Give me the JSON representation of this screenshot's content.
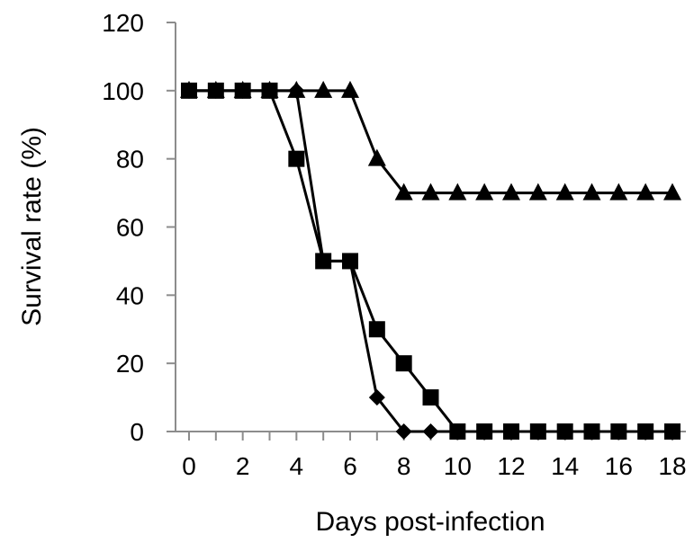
{
  "chart_data": {
    "type": "line",
    "title": "",
    "xlabel": "Days post-infection",
    "ylabel": "Survival rate (%)",
    "xlim": [
      0,
      18
    ],
    "ylim": [
      0,
      120
    ],
    "x_ticks": [
      "0",
      "2",
      "4",
      "6",
      "8",
      "10",
      "12",
      "14",
      "16",
      "18"
    ],
    "y_ticks": [
      "0",
      "20",
      "40",
      "60",
      "80",
      "100",
      "120"
    ],
    "grid": false,
    "legend": "none",
    "x": [
      0,
      1,
      2,
      3,
      4,
      5,
      6,
      7,
      8,
      9,
      10,
      11,
      12,
      13,
      14,
      15,
      16,
      17,
      18
    ],
    "series": [
      {
        "marker": "diamond",
        "color": "#000000",
        "values": [
          100,
          100,
          100,
          100,
          100,
          50,
          50,
          10,
          0,
          0,
          0,
          0,
          0,
          0,
          0,
          0,
          0,
          0,
          0
        ]
      },
      {
        "marker": "triangle",
        "color": "#000000",
        "values": [
          100,
          100,
          100,
          100,
          100,
          100,
          100,
          80,
          70,
          70,
          70,
          70,
          70,
          70,
          70,
          70,
          70,
          70,
          70
        ]
      },
      {
        "marker": "square",
        "color": "#000000",
        "values": [
          100,
          100,
          100,
          100,
          80,
          50,
          50,
          30,
          20,
          10,
          0,
          0,
          0,
          0,
          0,
          0,
          0,
          0,
          0
        ]
      }
    ]
  }
}
